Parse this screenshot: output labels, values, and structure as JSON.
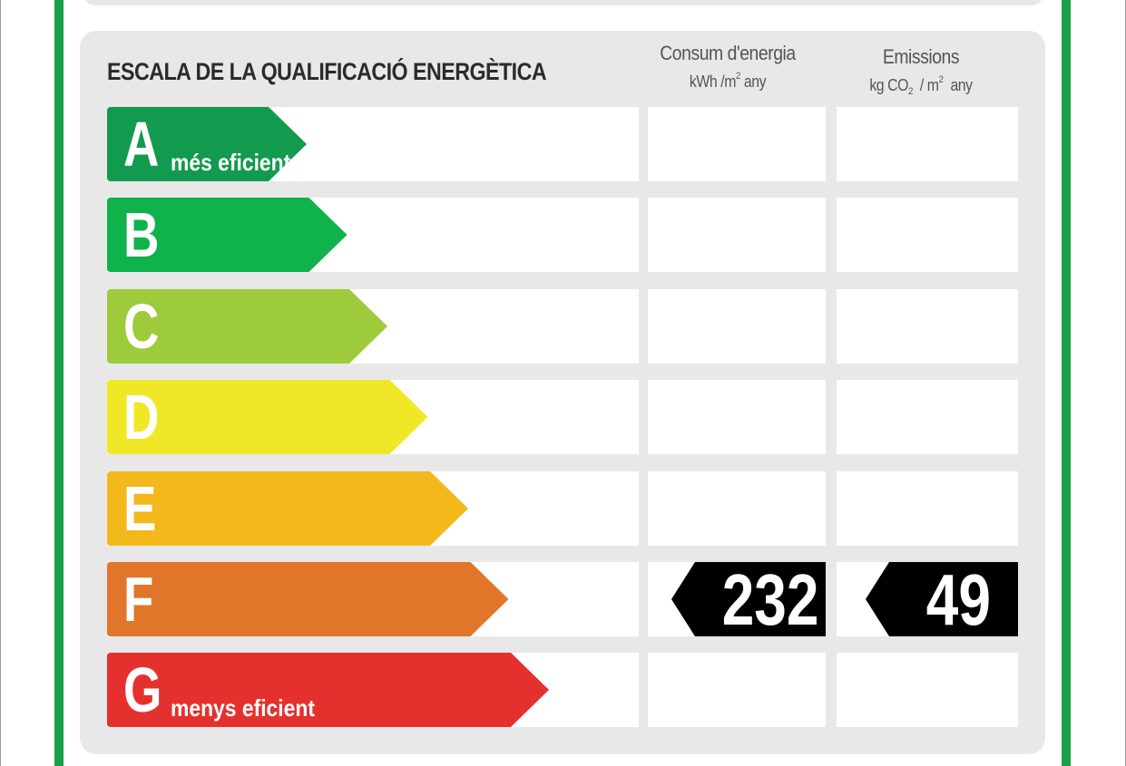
{
  "title": "ESCALA DE LA QUALIFICACIÓ ENERGÈTICA",
  "columns": {
    "consum": {
      "label": "Consum d'energia",
      "unit_pre": "kWh /m",
      "unit_sup": "2",
      "unit_post": " any"
    },
    "emissions": {
      "label": "Emissions",
      "unit_pre": "kg CO",
      "unit_sub": "2",
      "unit_mid": "  / m",
      "unit_sup": "2",
      "unit_post": "  any"
    }
  },
  "colors": {
    "frame_green": "#19a14a",
    "panel_gray": "#e9e8e8",
    "value_black": "#000000"
  },
  "ratings": [
    {
      "letter": "A",
      "sublabel": "més eficient",
      "color": "#129a4f"
    },
    {
      "letter": "B",
      "sublabel": "",
      "color": "#10b24b"
    },
    {
      "letter": "C",
      "sublabel": "",
      "color": "#9dcb3b"
    },
    {
      "letter": "D",
      "sublabel": "",
      "color": "#f0e826"
    },
    {
      "letter": "E",
      "sublabel": "",
      "color": "#f2b81c"
    },
    {
      "letter": "F",
      "sublabel": "",
      "color": "#e1762a"
    },
    {
      "letter": "G",
      "sublabel": "menys eficient",
      "color": "#e5312d"
    }
  ],
  "result": {
    "rating": "F",
    "consum_value": "232",
    "emissions_value": "49"
  }
}
